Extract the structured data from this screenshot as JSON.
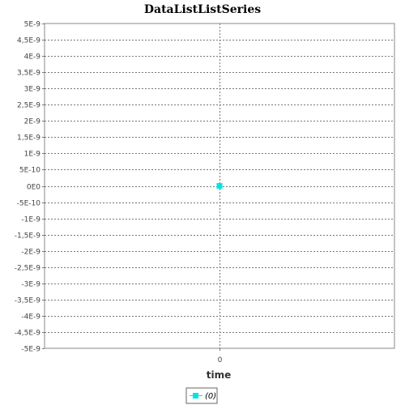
{
  "chart_data": {
    "type": "scatter",
    "title": "DataListListSeries",
    "xlabel": "time",
    "ylabel": "",
    "xlim": [
      -1,
      1
    ],
    "ylim": [
      -5e-09,
      5e-09
    ],
    "x_ticks": [
      0
    ],
    "x_tick_labels": [
      "0"
    ],
    "y_ticks": [
      5e-09,
      4.5e-09,
      4e-09,
      3.5e-09,
      3e-09,
      2.5e-09,
      2e-09,
      1.5e-09,
      1e-09,
      5e-10,
      0,
      -5e-10,
      -1e-09,
      -1.5e-09,
      -2e-09,
      -2.5e-09,
      -3e-09,
      -3.5e-09,
      -4e-09,
      -4.5e-09,
      -5e-09
    ],
    "y_tick_labels": [
      "5E-9",
      "4,5E-9",
      "4E-9",
      "3,5E-9",
      "3E-9",
      "2,5E-9",
      "2E-9",
      "1,5E-9",
      "1E-9",
      "5E-10",
      "0E0",
      "-5E-10",
      "-1E-9",
      "-1,5E-9",
      "-2E-9",
      "-2,5E-9",
      "-3E-9",
      "-3,5E-9",
      "-4E-9",
      "-4,5E-9",
      "-5E-9"
    ],
    "grid": true,
    "legend_position": "bottom",
    "series": [
      {
        "name": "(0)",
        "color": "#00e5e5",
        "x": [
          0
        ],
        "y": [
          0
        ]
      }
    ]
  }
}
